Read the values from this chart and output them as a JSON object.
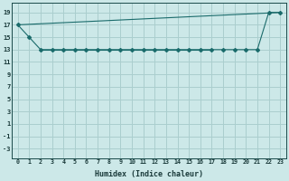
{
  "xlabel": "Humidex (Indice chaleur)",
  "bg_color": "#cce8e8",
  "grid_color": "#aacece",
  "line_color": "#1a6b6b",
  "xlim": [
    -0.5,
    23.5
  ],
  "ylim": [
    -4.5,
    20.5
  ],
  "xticks": [
    0,
    1,
    2,
    3,
    4,
    5,
    6,
    7,
    8,
    9,
    10,
    11,
    12,
    13,
    14,
    15,
    16,
    17,
    18,
    19,
    20,
    21,
    22,
    23
  ],
  "yticks": [
    -3,
    -1,
    1,
    3,
    5,
    7,
    9,
    11,
    13,
    15,
    17,
    19
  ],
  "line1_x": [
    0,
    1,
    2,
    3,
    4,
    5,
    6,
    7,
    8,
    9,
    10,
    11,
    12,
    13,
    14,
    15,
    16,
    17,
    18,
    19,
    20,
    21,
    22,
    23
  ],
  "line1_y": [
    17,
    15,
    13,
    13,
    13,
    13,
    13,
    13,
    13,
    13,
    13,
    13,
    13,
    13,
    13,
    13,
    13,
    13,
    13,
    13,
    13,
    13,
    19,
    19
  ],
  "line2_x": [
    0,
    23
  ],
  "line2_y": [
    17,
    19
  ],
  "line3_x": [
    2,
    3,
    4,
    5,
    6,
    7,
    8,
    9,
    10,
    11,
    12,
    13,
    14,
    15,
    16,
    17
  ],
  "line3_y": [
    13,
    13,
    13,
    13,
    13,
    13,
    13,
    13,
    13,
    13,
    13,
    13,
    13,
    13,
    13,
    13
  ]
}
